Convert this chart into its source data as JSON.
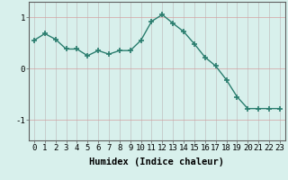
{
  "x": [
    0,
    1,
    2,
    3,
    4,
    5,
    6,
    7,
    8,
    9,
    10,
    11,
    12,
    13,
    14,
    15,
    16,
    17,
    18,
    19,
    20,
    21,
    22,
    23
  ],
  "y": [
    0.55,
    0.68,
    0.57,
    0.38,
    0.38,
    0.25,
    0.35,
    0.28,
    0.35,
    0.35,
    0.55,
    0.92,
    1.05,
    0.88,
    0.72,
    0.48,
    0.22,
    0.05,
    -0.22,
    -0.55,
    -0.78,
    -0.78,
    -0.78,
    -0.78
  ],
  "line_color": "#2a7d6e",
  "marker": "+",
  "marker_size": 4,
  "bg_color": "#d8f0ec",
  "grid_color": "#c0c0c0",
  "xlabel": "Humidex (Indice chaleur)",
  "xlabel_fontsize": 7.5,
  "xtick_labels": [
    "0",
    "1",
    "2",
    "3",
    "4",
    "5",
    "6",
    "7",
    "8",
    "9",
    "10",
    "11",
    "12",
    "13",
    "14",
    "15",
    "16",
    "17",
    "18",
    "19",
    "20",
    "21",
    "22",
    "23"
  ],
  "yticks": [
    -1,
    0,
    1
  ],
  "ylim": [
    -1.4,
    1.3
  ],
  "xlim": [
    -0.5,
    23.5
  ],
  "line_width": 1.0,
  "tick_fontsize": 6.5,
  "spine_color": "#606060"
}
